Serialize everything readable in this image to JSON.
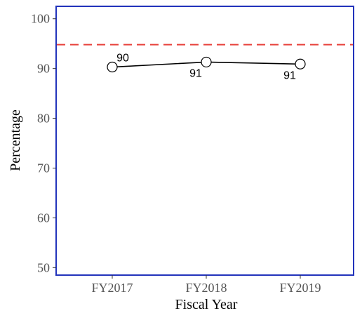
{
  "chart_data": {
    "type": "line",
    "title": "",
    "xlabel": "Fiscal Year",
    "ylabel": "Percentage",
    "categories": [
      "FY2017",
      "FY2018",
      "FY2019"
    ],
    "series": [
      {
        "values": [
          90.3,
          91.3,
          90.9
        ],
        "labels": [
          "90",
          "91",
          "91"
        ]
      }
    ],
    "ylim": [
      48.5,
      102.5
    ],
    "yticks": [
      50,
      60,
      70,
      80,
      90,
      100
    ],
    "reference_line": {
      "value": 94.8,
      "style": "dashed",
      "color": "#e8423c"
    },
    "grid": false,
    "colors": {
      "frame": "#2233bb",
      "line": "#000000",
      "marker": "#000000"
    }
  }
}
